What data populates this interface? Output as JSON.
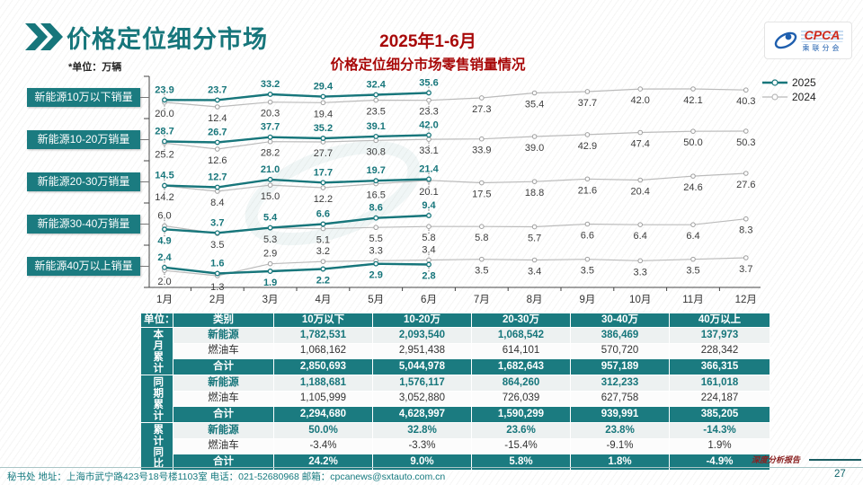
{
  "header": {
    "title": "价格定位细分市场",
    "subtitle_line1": "2025年1-6月",
    "subtitle_line2": "价格定位细分市场零售销量情况",
    "unit_note": "*单位：万辆",
    "logo": {
      "brand": "CPCA",
      "brand_sub": "乘联分会"
    }
  },
  "legend": [
    {
      "label": "2025",
      "color": "#17767b",
      "weight": 2.5
    },
    {
      "label": "2024",
      "color": "#b9b9b9",
      "weight": 1.2
    }
  ],
  "colors": {
    "line_2025": "#17767b",
    "line_2024": "#bbbbbb",
    "label_dark": "#3c3c3c",
    "axis": "#444444",
    "accent_teal": "#1b7b80",
    "title_red": "#a80808"
  },
  "chart_data": {
    "type": "line",
    "title": "2025年1-6月价格定位细分市场零售销量情况",
    "unit": "万辆",
    "x": [
      "1月",
      "2月",
      "3月",
      "4月",
      "5月",
      "6月",
      "7月",
      "8月",
      "9月",
      "10月",
      "11月",
      "12月"
    ],
    "legend_position": "top-right",
    "grid": false,
    "panels": [
      {
        "label": "新能源10万以下销量",
        "series": [
          {
            "name": "2025",
            "values": [
              23.9,
              23.7,
              33.2,
              29.4,
              32.4,
              35.6
            ]
          },
          {
            "name": "2024",
            "values": [
              20.0,
              12.4,
              20.3,
              19.4,
              23.5,
              23.3,
              27.3,
              35.4,
              37.7,
              42.0,
              42.1,
              40.3
            ]
          }
        ]
      },
      {
        "label": "新能源10-20万销量",
        "series": [
          {
            "name": "2025",
            "values": [
              28.7,
              26.7,
              37.7,
              35.2,
              39.1,
              42.0
            ]
          },
          {
            "name": "2024",
            "values": [
              25.2,
              12.6,
              28.2,
              27.7,
              30.8,
              33.1,
              33.9,
              39.0,
              42.9,
              47.4,
              50.0,
              50.3
            ]
          }
        ]
      },
      {
        "label": "新能源20-30万销量",
        "series": [
          {
            "name": "2025",
            "values": [
              14.5,
              12.7,
              21.0,
              17.7,
              19.7,
              21.4
            ]
          },
          {
            "name": "2024",
            "values": [
              14.2,
              8.4,
              15.0,
              12.2,
              16.5,
              20.1,
              17.5,
              18.8,
              21.6,
              20.4,
              24.6,
              27.6
            ]
          }
        ]
      },
      {
        "label": "新能源30-40万销量",
        "series": [
          {
            "name": "2025",
            "values": [
              4.9,
              3.7,
              5.4,
              6.6,
              8.6,
              9.4
            ]
          },
          {
            "name": "2024",
            "values": [
              6.0,
              3.5,
              5.3,
              5.1,
              5.5,
              5.8,
              5.8,
              5.7,
              6.6,
              6.4,
              6.4,
              8.3
            ]
          }
        ]
      },
      {
        "label": "新能源40万以上销量",
        "series": [
          {
            "name": "2025",
            "values": [
              2.4,
              1.6,
              1.9,
              2.2,
              2.9,
              2.8
            ]
          },
          {
            "name": "2024",
            "values": [
              2.0,
              1.3,
              2.9,
              3.2,
              3.3,
              3.4,
              3.5,
              3.4,
              3.5,
              3.3,
              3.5,
              3.7
            ]
          }
        ]
      }
    ]
  },
  "table": {
    "unit": "单位：辆",
    "col_headers": [
      "类别",
      "10万以下",
      "10-20万",
      "20-30万",
      "30-40万",
      "40万以上"
    ],
    "groups": [
      {
        "label": "本月累计",
        "rows": [
          {
            "label": "新能源",
            "values": [
              "1,782,531",
              "2,093,540",
              "1,068,542",
              "386,469",
              "137,973"
            ]
          },
          {
            "label": "燃油车",
            "values": [
              "1,068,162",
              "2,951,438",
              "614,101",
              "570,720",
              "228,342"
            ]
          },
          {
            "label": "合计",
            "values": [
              "2,850,693",
              "5,044,978",
              "1,682,643",
              "957,189",
              "366,315"
            ]
          }
        ]
      },
      {
        "label": "同期累计",
        "rows": [
          {
            "label": "新能源",
            "values": [
              "1,188,681",
              "1,576,117",
              "864,260",
              "312,233",
              "161,018"
            ]
          },
          {
            "label": "燃油车",
            "values": [
              "1,105,999",
              "3,052,880",
              "726,039",
              "627,758",
              "224,187"
            ]
          },
          {
            "label": "合计",
            "values": [
              "2,294,680",
              "4,628,997",
              "1,590,299",
              "939,991",
              "385,205"
            ]
          }
        ]
      },
      {
        "label": "累计同比",
        "rows": [
          {
            "label": "新能源",
            "values": [
              "50.0%",
              "32.8%",
              "23.6%",
              "23.8%",
              "-14.3%"
            ]
          },
          {
            "label": "燃油车",
            "values": [
              "-3.4%",
              "-3.3%",
              "-15.4%",
              "-9.1%",
              "1.9%"
            ]
          },
          {
            "label": "合计",
            "values": [
              "24.2%",
              "9.0%",
              "5.8%",
              "1.8%",
              "-4.9%"
            ]
          }
        ]
      }
    ]
  },
  "footer": {
    "left": "秘书处  地址：上海市武宁路423号18号楼1103室  电话：021-52680968   邮箱：cpcanews@sxtauto.com.cn",
    "report_tag": "深度分析报告",
    "page": "27"
  }
}
